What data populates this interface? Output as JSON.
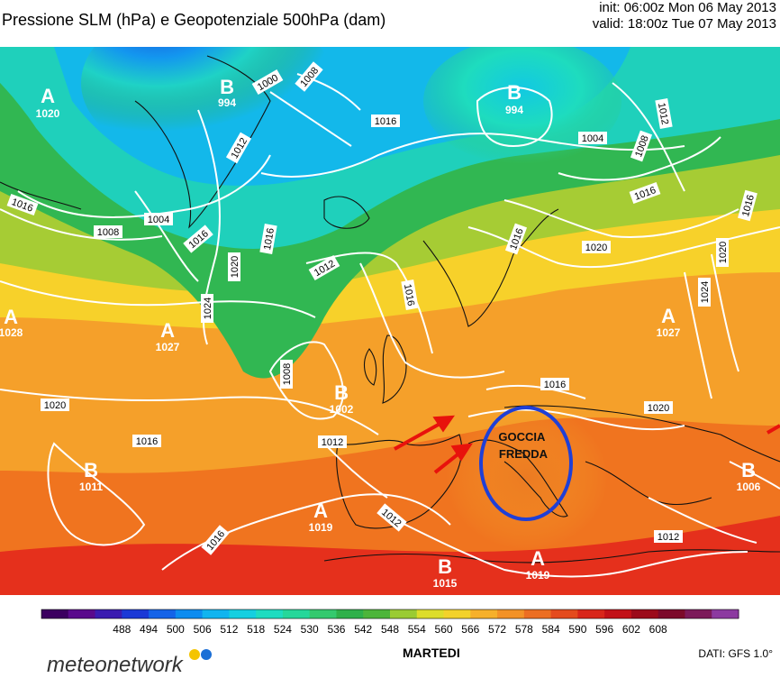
{
  "header": {
    "title": "Pressione SLM (hPa) e Geopotenziale 500hPa (dam)",
    "init": "init: 06:00z Mon 06 May 2013",
    "valid": "valid: 18:00z Tue 07 May 2013"
  },
  "map": {
    "pressure_centers": [
      {
        "letter": "A",
        "value": "1020"
      },
      {
        "letter": "B",
        "value": "994"
      },
      {
        "letter": "B",
        "value": "994"
      },
      {
        "letter": "A",
        "value": "1028"
      },
      {
        "letter": "A",
        "value": "1027"
      },
      {
        "letter": "B",
        "value": "1002"
      },
      {
        "letter": "B",
        "value": "1011"
      },
      {
        "letter": "A",
        "value": "1019"
      },
      {
        "letter": "B",
        "value": "1015"
      },
      {
        "letter": "A",
        "value": "1019"
      },
      {
        "letter": "A",
        "value": "1027"
      },
      {
        "letter": "B",
        "value": "1006"
      }
    ],
    "isobar_labels": [
      "1000",
      "1008",
      "1012",
      "1016",
      "1004",
      "1008",
      "1016",
      "1020",
      "1024",
      "1016",
      "1012",
      "1016",
      "1008",
      "1020",
      "1016",
      "1012",
      "1016",
      "1012",
      "1004",
      "1008",
      "1016",
      "1020",
      "1020",
      "1024",
      "1016",
      "1020",
      "1012",
      "1016",
      "1012",
      "1016",
      "1016"
    ],
    "annotation": "GOCCIA FREDDA",
    "annotation_color": "#1f3fd6",
    "arrow_color": "#e8120c"
  },
  "legend": {
    "ticks": [
      "488",
      "494",
      "500",
      "506",
      "512",
      "518",
      "524",
      "530",
      "536",
      "542",
      "548",
      "554",
      "560",
      "566",
      "572",
      "578",
      "584",
      "590",
      "596",
      "602",
      "608"
    ],
    "colors": [
      "#3b0060",
      "#5a0a8c",
      "#3a1cb0",
      "#1b39d6",
      "#1463e8",
      "#0d8cf0",
      "#11b4ef",
      "#14cfe0",
      "#1edcc0",
      "#26d79a",
      "#34c96e",
      "#2fb04a",
      "#4db53a",
      "#9acb33",
      "#dddd2a",
      "#f3d22a",
      "#f6b02a",
      "#f39226",
      "#ec6e22",
      "#e44b1d",
      "#d8261a",
      "#c21118",
      "#9c0b1a",
      "#7c0a2a",
      "#7c1a5a",
      "#8c3aa0"
    ]
  },
  "footer": {
    "day": "MARTEDI",
    "source": "DATI:  GFS  1.0°",
    "brand": "meteonetwork"
  }
}
